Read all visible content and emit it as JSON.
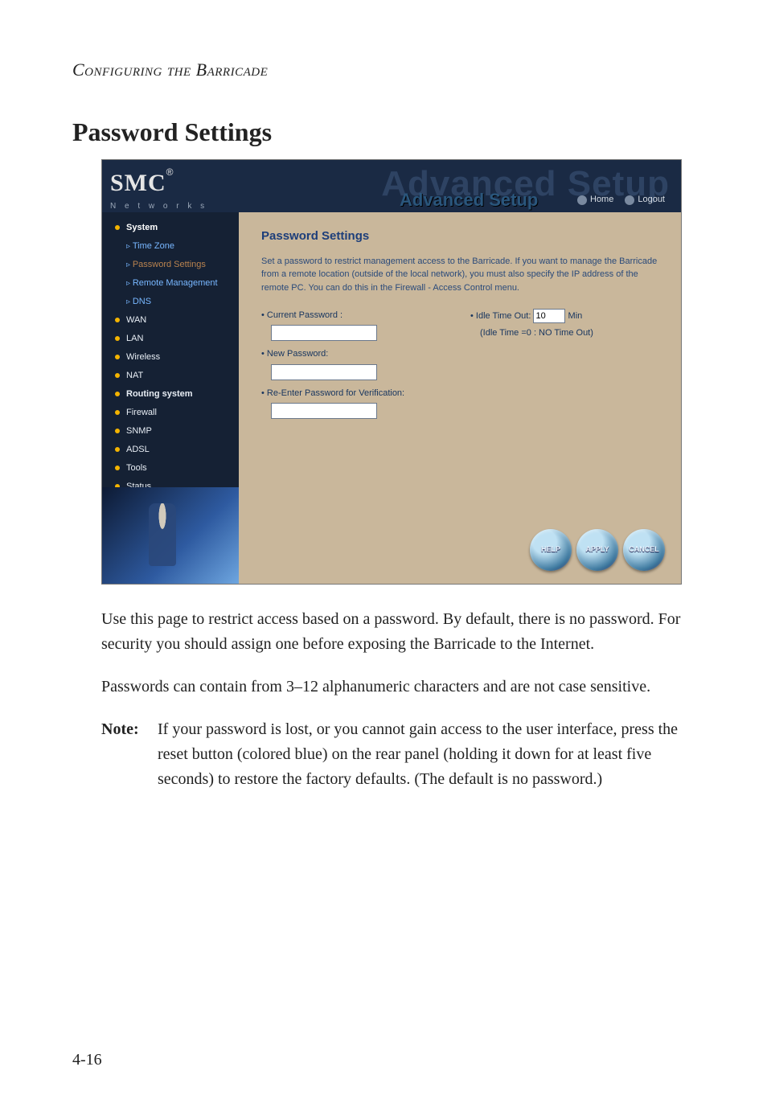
{
  "running_head": "Configuring the Barricade",
  "section_title": "Password Settings",
  "page_number": "4-16",
  "screenshot": {
    "logo_main": "SMC",
    "logo_reg": "®",
    "logo_sub": "N e t w o r k s",
    "ghost": "Advanced Setup",
    "adv_title": "Advanced Setup",
    "home": "Home",
    "logout": "Logout",
    "sidebar": [
      {
        "kind": "top",
        "label": "System",
        "current": true
      },
      {
        "kind": "sub",
        "label": "Time Zone"
      },
      {
        "kind": "sub",
        "label": "Password Settings",
        "active": true
      },
      {
        "kind": "sub",
        "label": "Remote Management"
      },
      {
        "kind": "sub",
        "label": "DNS"
      },
      {
        "kind": "top",
        "label": "WAN"
      },
      {
        "kind": "top",
        "label": "LAN"
      },
      {
        "kind": "top",
        "label": "Wireless"
      },
      {
        "kind": "top",
        "label": "NAT"
      },
      {
        "kind": "top",
        "label": "Routing system",
        "hot": true
      },
      {
        "kind": "top",
        "label": "Firewall"
      },
      {
        "kind": "top",
        "label": "SNMP"
      },
      {
        "kind": "top",
        "label": "ADSL"
      },
      {
        "kind": "top",
        "label": "Tools"
      },
      {
        "kind": "top",
        "label": "Status"
      }
    ],
    "panel": {
      "heading": "Password Settings",
      "intro": "Set a password to restrict management access to the Barricade. If you want to manage the Barricade from a remote location (outside of the local network), you must also specify the IP address of the remote PC. You can do this in the Firewall - Access Control menu.",
      "current_pw_label": "Current Password :",
      "new_pw_label": "New Password:",
      "reenter_label": "Re-Enter Password for Verification:",
      "idle_label": "Idle Time Out:",
      "idle_value": "10",
      "idle_unit": "Min",
      "idle_note": "(Idle Time =0 : NO Time Out)",
      "buttons": {
        "help": "HELP",
        "apply": "APPLY",
        "cancel": "CANCEL"
      }
    }
  },
  "body": {
    "p1": "Use this page to restrict access based on a password. By default, there is no password. For security you should assign one before exposing the Barricade to the Internet.",
    "p2": "Passwords can contain from 3–12 alphanumeric characters and are not case sensitive.",
    "note_label": "Note:",
    "note_body": "If your password is lost, or you cannot gain access to the user interface, press the reset button (colored blue) on the rear panel (holding it down for at least five seconds) to restore the factory defaults. (The default is no password.)"
  }
}
